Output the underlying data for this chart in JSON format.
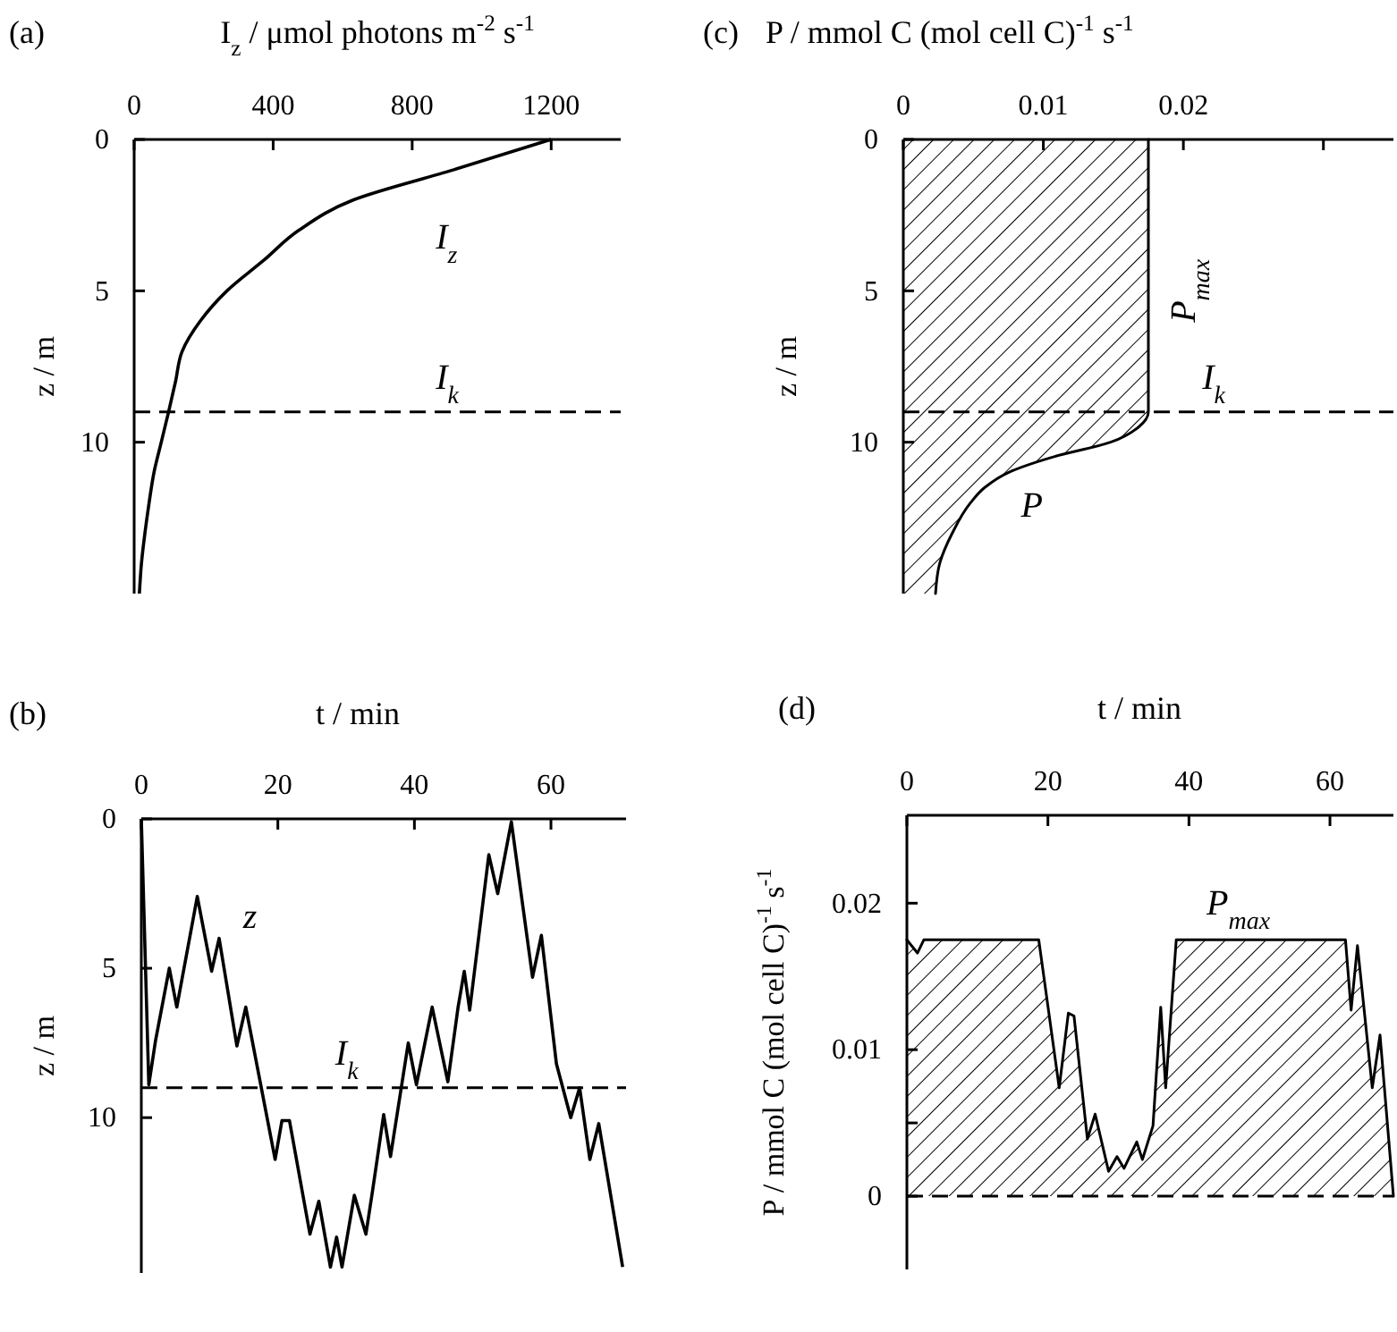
{
  "chart_data": [
    {
      "type": "line",
      "title": "(a)",
      "xlabel": "I$_{z}$ / μmol photons m$^{-2}$ s$^{-1}$",
      "ylabel": "z / m",
      "orientation": "horizontal",
      "x": [
        0,
        1,
        2,
        3,
        4,
        5,
        6,
        7,
        8,
        9,
        10,
        11,
        12,
        13,
        14,
        15
      ],
      "series": [
        {
          "name": "I$_{z}$",
          "color": "#000000",
          "values": [
            1200,
            920,
            630,
            474,
            372,
            267,
            190,
            138,
            119,
            99,
            78,
            57,
            43,
            31,
            21,
            15
          ]
        }
      ],
      "xlim": [
        0,
        1400
      ],
      "xticks": [
        0,
        400,
        800,
        1200
      ],
      "ylim": [
        15,
        0
      ],
      "yticks": [
        0,
        5,
        10
      ],
      "ref_lines": [
        {
          "axis": "y",
          "value": 9,
          "label": "I$_{k}$",
          "line_style": "dashed"
        }
      ]
    },
    {
      "type": "area",
      "title": "(c)",
      "xlabel": "P / mmol C (mol cell C)$^{-1}$ s$^{-1}$",
      "ylabel": "z / m",
      "orientation": "horizontal",
      "x": [
        0,
        9,
        9.5,
        10,
        10.5,
        11,
        11.5,
        12,
        13,
        14,
        15
      ],
      "series": [
        {
          "name": "P",
          "color": "#000000",
          "values": [
            0.0175,
            0.0175,
            0.0168,
            0.0148,
            0.0106,
            0.0075,
            0.0058,
            0.0048,
            0.0035,
            0.0026,
            0.0023
          ]
        }
      ],
      "xlim": [
        0,
        0.035
      ],
      "xticks": [
        0,
        0.01,
        0.02,
        {
          "value": 0.03,
          "label": null
        }
      ],
      "ylim": [
        15,
        0
      ],
      "yticks": [
        0,
        5,
        10
      ],
      "ref_lines": [
        {
          "axis": "y",
          "value": 9,
          "label": "I$_{k}$",
          "line_style": "dashed"
        }
      ],
      "annotations": [
        {
          "text": "P$_{max}$",
          "x": 0.0175,
          "y": 5
        }
      ]
    },
    {
      "type": "line",
      "title": "(b)",
      "xlabel": "t / min",
      "ylabel": "z / m",
      "x": [
        0,
        1.1,
        2.1,
        4.1,
        5.2,
        8.2,
        10.3,
        11.4,
        14.0,
        15.3,
        19.6,
        20.6,
        21.7,
        24.7,
        26.0,
        27.7,
        28.6,
        29.4,
        31.2,
        32.9,
        33.9,
        35.5,
        36.5,
        39.1,
        40.3,
        42.6,
        44.9,
        46.4,
        47.3,
        48.1,
        50.9,
        52.2,
        54.2,
        57.3,
        58.6,
        60.8,
        62.9,
        64.2,
        65.7,
        67.0,
        70.5
      ],
      "series": [
        {
          "name": "z",
          "color": "#000000",
          "values": [
            0,
            8.9,
            7.4,
            5.0,
            6.3,
            2.6,
            5.1,
            4.0,
            7.6,
            6.3,
            11.4,
            10.1,
            10.1,
            13.9,
            12.8,
            15,
            14.0,
            15,
            12.6,
            13.9,
            12.4,
            9.9,
            11.3,
            7.5,
            8.9,
            6.3,
            8.8,
            6.3,
            5.1,
            6.4,
            1.2,
            2.5,
            0.1,
            5.3,
            3.9,
            8.2,
            10.0,
            9.0,
            11.4,
            10.2,
            15
          ]
        }
      ],
      "xlim": [
        0,
        71
      ],
      "xticks": [
        0,
        20,
        40,
        60
      ],
      "ylim": [
        15.2,
        0
      ],
      "yticks": [
        0,
        5,
        10
      ],
      "ref_lines": [
        {
          "axis": "y",
          "value": 9,
          "label": "I$_{k}$",
          "line_style": "dashed"
        }
      ]
    },
    {
      "type": "area",
      "title": "(d)",
      "xlabel": "t / min",
      "ylabel": "P / mmol C (mol cell C)$^{-1}$ s$^{-1}$",
      "x": [
        0,
        1.5,
        2.4,
        18.7,
        21.6,
        22.9,
        23.7,
        25.6,
        26.7,
        28.6,
        29.8,
        30.8,
        32.6,
        33.4,
        34.9,
        36.0,
        36.7,
        38.2,
        62.2,
        63.0,
        63.9,
        66.0,
        67.1,
        69
      ],
      "series": [
        {
          "color": "#000000",
          "values": [
            0.0175,
            0.0166,
            0.0175,
            0.0175,
            0.0074,
            0.0125,
            0.0123,
            0.0039,
            0.0056,
            0.0017,
            0.0027,
            0.0019,
            0.0037,
            0.0025,
            0.0048,
            0.0129,
            0.0074,
            0.0175,
            0.0175,
            0.0127,
            0.0171,
            0.0074,
            0.011,
            0
          ]
        }
      ],
      "xlim": [
        0,
        69
      ],
      "xticks": [
        0,
        20,
        40,
        60
      ],
      "ylim": [
        -0.005,
        0.026
      ],
      "yticks": [
        0,
        {
          "value": 0.005,
          "label": null
        },
        0.01,
        0.02
      ],
      "ref_lines": [
        {
          "axis": "y",
          "value": 0,
          "line_style": "dashed"
        }
      ],
      "annotations": [
        {
          "text": "P$_{max}$",
          "x": 47,
          "y": 0.0175
        }
      ]
    }
  ]
}
